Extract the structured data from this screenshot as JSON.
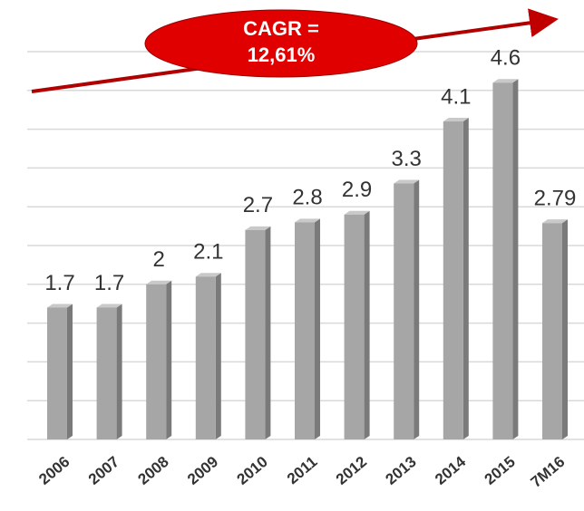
{
  "chart_data": {
    "type": "bar",
    "annotation": [
      "CAGR =",
      "12,61%"
    ],
    "categories": [
      "2006",
      "2007",
      "2008",
      "2009",
      "2010",
      "2011",
      "2012",
      "2013",
      "2014",
      "2015",
      "7M16"
    ],
    "values": [
      1.7,
      1.7,
      2,
      2.1,
      2.7,
      2.8,
      2.9,
      3.3,
      4.1,
      4.6,
      2.79
    ],
    "color": "#a6a6a6",
    "ylim": [
      0,
      5
    ],
    "yticks": [
      0,
      0.5,
      1,
      1.5,
      2,
      2.5,
      3,
      3.5,
      4,
      4.5,
      5
    ],
    "grid": true
  }
}
